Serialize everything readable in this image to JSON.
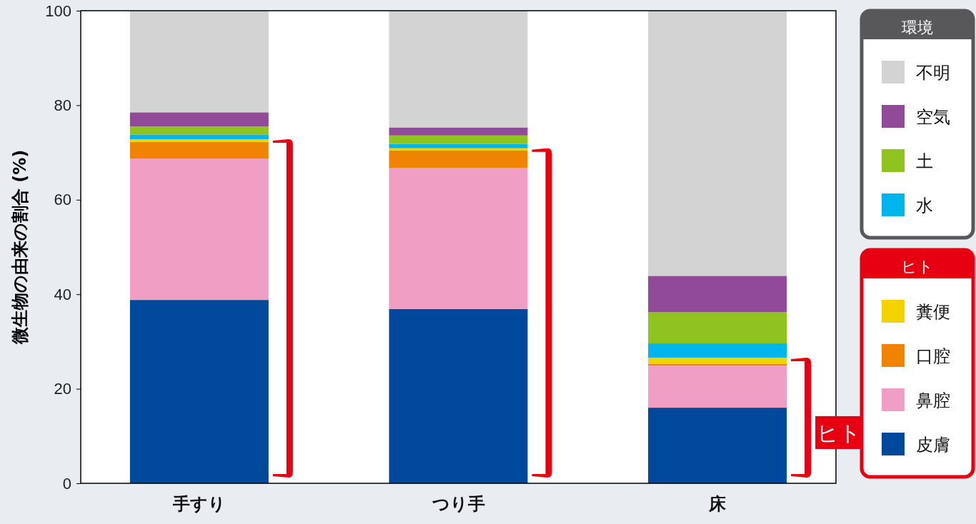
{
  "chart_data": {
    "type": "bar",
    "stacked": true,
    "ylabel": "微生物の由来の割合 (%)",
    "categories": [
      "手すり",
      "つり手",
      "床"
    ],
    "ylim": [
      0,
      100
    ],
    "yticks": [
      0,
      20,
      40,
      60,
      80,
      100
    ],
    "legend": "right",
    "series": [
      {
        "name": "皮膚",
        "color": "#00489c",
        "values": [
          38.8,
          36.9,
          16.0
        ]
      },
      {
        "name": "鼻腔",
        "color": "#f19ec4",
        "values": [
          29.9,
          29.8,
          8.9
        ]
      },
      {
        "name": "口腔",
        "color": "#f08300",
        "values": [
          3.5,
          3.7,
          0.4
        ]
      },
      {
        "name": "糞便",
        "color": "#f2d300",
        "values": [
          0.6,
          0.5,
          1.3
        ]
      },
      {
        "name": "水",
        "color": "#00b5ec",
        "values": [
          1.0,
          0.9,
          3.0
        ]
      },
      {
        "name": "土",
        "color": "#8fc31f",
        "values": [
          1.7,
          1.8,
          6.6
        ]
      },
      {
        "name": "空気",
        "color": "#904a98",
        "values": [
          3.0,
          1.7,
          7.7
        ]
      },
      {
        "name": "不明",
        "color": "#d3d3d3",
        "values": [
          21.5,
          24.7,
          56.1
        ]
      }
    ],
    "annotations": [
      "環境",
      "ヒト",
      "ヒト"
    ]
  }
}
